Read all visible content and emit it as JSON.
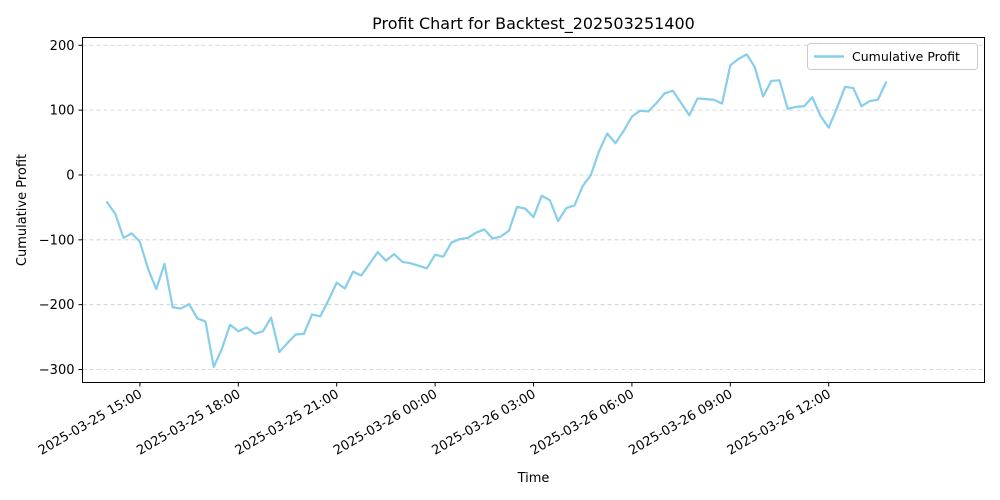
{
  "chart_data": {
    "type": "line",
    "title": "Profit Chart for Backtest_202503251400",
    "xlabel": "Time",
    "ylabel": "Cumulative Profit",
    "grid": {
      "x": false,
      "y": true,
      "style": "dashed"
    },
    "legend": {
      "placement": "top-right",
      "entries": [
        "Cumulative Profit"
      ]
    },
    "series_color": "#87CEEB",
    "xlim": [
      "2025-03-25 13:15",
      "2025-03-26 16:45"
    ],
    "ylim": [
      -320,
      212
    ],
    "x_ticks": [
      {
        "t": "2025-03-25 15:00",
        "label": "2025-03-25 15:00"
      },
      {
        "t": "2025-03-25 18:00",
        "label": "2025-03-25 18:00"
      },
      {
        "t": "2025-03-25 21:00",
        "label": "2025-03-25 21:00"
      },
      {
        "t": "2025-03-26 00:00",
        "label": "2025-03-26 00:00"
      },
      {
        "t": "2025-03-26 03:00",
        "label": "2025-03-26 03:00"
      },
      {
        "t": "2025-03-26 06:00",
        "label": "2025-03-26 06:00"
      },
      {
        "t": "2025-03-26 09:00",
        "label": "2025-03-26 09:00"
      },
      {
        "t": "2025-03-26 12:00",
        "label": "2025-03-26 12:00"
      }
    ],
    "y_ticks": [
      200,
      100,
      0,
      -100,
      -200,
      -300
    ],
    "series": [
      {
        "name": "Cumulative Profit",
        "points": [
          [
            "2025-03-25 14:00",
            -42
          ],
          [
            "2025-03-25 14:15",
            -60
          ],
          [
            "2025-03-25 14:30",
            -97
          ],
          [
            "2025-03-25 14:45",
            -90
          ],
          [
            "2025-03-25 15:00",
            -103
          ],
          [
            "2025-03-25 15:15",
            -145
          ],
          [
            "2025-03-25 15:30",
            -176
          ],
          [
            "2025-03-25 15:45",
            -137
          ],
          [
            "2025-03-25 16:00",
            -204
          ],
          [
            "2025-03-25 16:15",
            -206
          ],
          [
            "2025-03-25 16:30",
            -199
          ],
          [
            "2025-03-25 16:45",
            -221
          ],
          [
            "2025-03-25 17:00",
            -226
          ],
          [
            "2025-03-25 17:15",
            -296
          ],
          [
            "2025-03-25 17:30",
            -268
          ],
          [
            "2025-03-25 17:45",
            -231
          ],
          [
            "2025-03-25 18:00",
            -241
          ],
          [
            "2025-03-25 18:15",
            -235
          ],
          [
            "2025-03-25 18:30",
            -245
          ],
          [
            "2025-03-25 18:45",
            -241
          ],
          [
            "2025-03-25 19:00",
            -220
          ],
          [
            "2025-03-25 19:15",
            -273
          ],
          [
            "2025-03-25 19:30",
            -259
          ],
          [
            "2025-03-25 19:45",
            -246
          ],
          [
            "2025-03-25 20:00",
            -245
          ],
          [
            "2025-03-25 20:15",
            -215
          ],
          [
            "2025-03-25 20:30",
            -218
          ],
          [
            "2025-03-25 20:45",
            -193
          ],
          [
            "2025-03-25 21:00",
            -166
          ],
          [
            "2025-03-25 21:15",
            -175
          ],
          [
            "2025-03-25 21:30",
            -149
          ],
          [
            "2025-03-25 21:45",
            -155
          ],
          [
            "2025-03-25 22:00",
            -137
          ],
          [
            "2025-03-25 22:15",
            -119
          ],
          [
            "2025-03-25 22:30",
            -132
          ],
          [
            "2025-03-25 22:45",
            -122
          ],
          [
            "2025-03-25 23:00",
            -134
          ],
          [
            "2025-03-25 23:15",
            -136
          ],
          [
            "2025-03-25 23:30",
            -140
          ],
          [
            "2025-03-25 23:45",
            -144
          ],
          [
            "2025-03-26 00:00",
            -123
          ],
          [
            "2025-03-26 00:15",
            -126
          ],
          [
            "2025-03-26 00:30",
            -104
          ],
          [
            "2025-03-26 00:45",
            -99
          ],
          [
            "2025-03-26 01:00",
            -97
          ],
          [
            "2025-03-26 01:15",
            -89
          ],
          [
            "2025-03-26 01:30",
            -84
          ],
          [
            "2025-03-26 01:45",
            -98
          ],
          [
            "2025-03-26 02:00",
            -95
          ],
          [
            "2025-03-26 02:15",
            -86
          ],
          [
            "2025-03-26 02:30",
            -49
          ],
          [
            "2025-03-26 02:45",
            -52
          ],
          [
            "2025-03-26 03:00",
            -65
          ],
          [
            "2025-03-26 03:15",
            -32
          ],
          [
            "2025-03-26 03:30",
            -39
          ],
          [
            "2025-03-26 03:45",
            -71
          ],
          [
            "2025-03-26 04:00",
            -51
          ],
          [
            "2025-03-26 04:15",
            -47
          ],
          [
            "2025-03-26 04:30",
            -17
          ],
          [
            "2025-03-26 04:45",
            0
          ],
          [
            "2025-03-26 05:00",
            37
          ],
          [
            "2025-03-26 05:15",
            64
          ],
          [
            "2025-03-26 05:30",
            49
          ],
          [
            "2025-03-26 05:45",
            68
          ],
          [
            "2025-03-26 06:00",
            90
          ],
          [
            "2025-03-26 06:15",
            99
          ],
          [
            "2025-03-26 06:30",
            98
          ],
          [
            "2025-03-26 06:45",
            111
          ],
          [
            "2025-03-26 07:00",
            126
          ],
          [
            "2025-03-26 07:15",
            130
          ],
          [
            "2025-03-26 07:30",
            111
          ],
          [
            "2025-03-26 07:45",
            92
          ],
          [
            "2025-03-26 08:00",
            118
          ],
          [
            "2025-03-26 08:15",
            117
          ],
          [
            "2025-03-26 08:30",
            116
          ],
          [
            "2025-03-26 08:45",
            110
          ],
          [
            "2025-03-26 09:00",
            169
          ],
          [
            "2025-03-26 09:15",
            179
          ],
          [
            "2025-03-26 09:30",
            186
          ],
          [
            "2025-03-26 09:45",
            166
          ],
          [
            "2025-03-26 10:00",
            121
          ],
          [
            "2025-03-26 10:15",
            145
          ],
          [
            "2025-03-26 10:30",
            146
          ],
          [
            "2025-03-26 10:45",
            102
          ],
          [
            "2025-03-26 11:00",
            105
          ],
          [
            "2025-03-26 11:15",
            106
          ],
          [
            "2025-03-26 11:30",
            120
          ],
          [
            "2025-03-26 11:45",
            91
          ],
          [
            "2025-03-26 12:00",
            73
          ],
          [
            "2025-03-26 12:15",
            103
          ],
          [
            "2025-03-26 12:30",
            136
          ],
          [
            "2025-03-26 12:45",
            134
          ],
          [
            "2025-03-26 13:00",
            106
          ],
          [
            "2025-03-26 13:15",
            114
          ],
          [
            "2025-03-26 13:30",
            116
          ],
          [
            "2025-03-26 13:45",
            143
          ]
        ]
      }
    ]
  }
}
